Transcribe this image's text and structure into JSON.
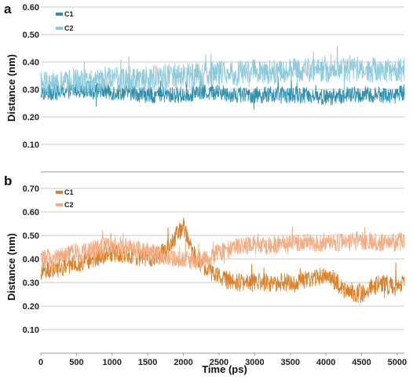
{
  "chart_data": [
    {
      "panel": "a",
      "type": "line",
      "ylabel": "Distance (nm)",
      "xlabel": "",
      "ylim": [
        0.0,
        0.6
      ],
      "xlim": [
        0,
        5100
      ],
      "yticks": [
        "0.60",
        "0.50",
        "0.40",
        "0.30",
        "0.20",
        "0.10"
      ],
      "ytick_values": [
        0.6,
        0.5,
        0.4,
        0.3,
        0.2,
        0.1
      ],
      "grid": true,
      "legend_position": "top-left",
      "series": [
        {
          "name": "C1",
          "color": "#2e8fae",
          "x": [
            0,
            250,
            500,
            750,
            1000,
            1250,
            1500,
            1750,
            2000,
            2250,
            2500,
            2750,
            3000,
            3250,
            3500,
            3750,
            4000,
            4250,
            4500,
            4750,
            5000,
            5100
          ],
          "values": [
            0.29,
            0.29,
            0.3,
            0.3,
            0.29,
            0.29,
            0.28,
            0.28,
            0.28,
            0.29,
            0.29,
            0.28,
            0.28,
            0.28,
            0.28,
            0.28,
            0.27,
            0.28,
            0.28,
            0.28,
            0.28,
            0.29
          ],
          "noise": 0.03
        },
        {
          "name": "C2",
          "color": "#8ecadc",
          "x": [
            0,
            250,
            500,
            750,
            1000,
            1250,
            1500,
            1750,
            2000,
            2250,
            2500,
            2750,
            3000,
            3250,
            3500,
            3750,
            4000,
            4250,
            4500,
            4750,
            5000,
            5100
          ],
          "values": [
            0.32,
            0.32,
            0.33,
            0.33,
            0.34,
            0.34,
            0.34,
            0.35,
            0.35,
            0.35,
            0.36,
            0.36,
            0.37,
            0.36,
            0.37,
            0.37,
            0.37,
            0.37,
            0.37,
            0.37,
            0.37,
            0.37
          ],
          "noise": 0.045
        }
      ]
    },
    {
      "panel": "b",
      "type": "line",
      "ylabel": "Distance (nm)",
      "xlabel": "Time (ps)",
      "ylim": [
        0.0,
        0.7
      ],
      "xlim": [
        0,
        5100
      ],
      "xticks": [
        "0",
        "500",
        "1000",
        "1500",
        "2000",
        "2500",
        "3000",
        "3500",
        "4000",
        "4500",
        "5000"
      ],
      "xtick_values": [
        0,
        500,
        1000,
        1500,
        2000,
        2500,
        3000,
        3500,
        4000,
        4500,
        5000
      ],
      "yticks": [
        "0.70",
        "0.60",
        "0.50",
        "0.40",
        "0.30",
        "0.20",
        "0.10"
      ],
      "ytick_values": [
        0.7,
        0.6,
        0.5,
        0.4,
        0.3,
        0.2,
        0.1
      ],
      "grid": true,
      "legend_position": "top-left",
      "series": [
        {
          "name": "C1",
          "color": "#d9822b",
          "x": [
            0,
            250,
            500,
            750,
            1000,
            1250,
            1500,
            1750,
            1900,
            2000,
            2100,
            2250,
            2500,
            2750,
            3000,
            3250,
            3500,
            3750,
            4000,
            4250,
            4500,
            4750,
            5000,
            5100
          ],
          "values": [
            0.35,
            0.36,
            0.38,
            0.4,
            0.43,
            0.42,
            0.4,
            0.43,
            0.5,
            0.54,
            0.44,
            0.38,
            0.32,
            0.3,
            0.3,
            0.3,
            0.3,
            0.31,
            0.34,
            0.27,
            0.25,
            0.3,
            0.28,
            0.3
          ],
          "noise": 0.04
        },
        {
          "name": "C2",
          "color": "#f2ad83",
          "x": [
            0,
            250,
            500,
            750,
            1000,
            1250,
            1500,
            1750,
            2000,
            2250,
            2500,
            2750,
            3000,
            3250,
            3500,
            3750,
            4000,
            4250,
            4500,
            4750,
            5000,
            5100
          ],
          "values": [
            0.4,
            0.41,
            0.43,
            0.44,
            0.46,
            0.45,
            0.43,
            0.41,
            0.4,
            0.39,
            0.43,
            0.45,
            0.46,
            0.46,
            0.47,
            0.47,
            0.47,
            0.47,
            0.48,
            0.47,
            0.47,
            0.48
          ],
          "noise": 0.04
        }
      ]
    }
  ]
}
